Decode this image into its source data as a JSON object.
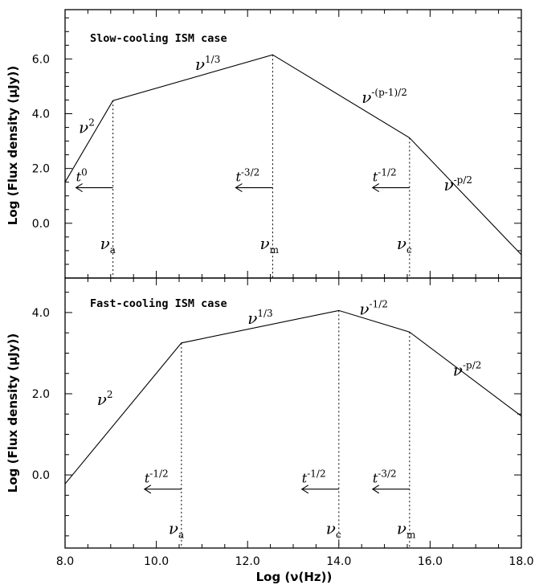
{
  "chart_data": [
    {
      "type": "line",
      "title": "Slow-cooling ISM case",
      "xlabel": "Log (ν(Hz))",
      "ylabel": "Log (Flux density (μJy))",
      "xlim": [
        8.0,
        18.0
      ],
      "ylim": [
        -2.0,
        7.8
      ],
      "yticks": [
        "0.0",
        "2.0",
        "4.0",
        "6.0"
      ],
      "series": [
        {
          "name": "spectrum",
          "x": [
            8.0,
            9.05,
            12.55,
            15.55,
            18.0
          ],
          "y": [
            1.5,
            4.48,
            6.15,
            3.12,
            -1.15
          ]
        }
      ],
      "breaks": [
        {
          "label": "a",
          "x": 9.05,
          "y": 4.48,
          "scaling": {
            "base": "t",
            "exp": "0"
          }
        },
        {
          "label": "m",
          "x": 12.55,
          "y": 6.15,
          "scaling": {
            "base": "t",
            "exp": "-3/2"
          }
        },
        {
          "label": "c",
          "x": 15.55,
          "y": 3.12,
          "scaling": {
            "base": "t",
            "exp": "-1/2"
          }
        }
      ],
      "segment_labels": [
        {
          "base": "ν",
          "exp": "2",
          "x": 8.3,
          "y": 3.3
        },
        {
          "base": "ν",
          "exp": "1/3",
          "x": 10.85,
          "y": 5.6
        },
        {
          "base": "ν",
          "exp": "-(p-1)/2",
          "x": 14.5,
          "y": 4.4
        },
        {
          "base": "ν",
          "exp": "-p/2",
          "x": 16.3,
          "y": 1.2
        }
      ],
      "break_symbol": "ν"
    },
    {
      "type": "line",
      "title": "Fast-cooling ISM case",
      "xlabel": "Log (ν(Hz))",
      "ylabel": "Log (Flux density (μJy))",
      "xlim": [
        8.0,
        18.0
      ],
      "ylim": [
        -1.8,
        4.85
      ],
      "yticks": [
        "0.0",
        "2.0",
        "4.0"
      ],
      "xticks": [
        "8.0",
        "10.0",
        "12.0",
        "14.0",
        "16.0",
        "18.0"
      ],
      "series": [
        {
          "name": "spectrum",
          "x": [
            8.0,
            10.55,
            14.0,
            15.55,
            18.0
          ],
          "y": [
            -0.22,
            3.25,
            4.05,
            3.52,
            1.45
          ]
        }
      ],
      "breaks": [
        {
          "label": "a",
          "x": 10.55,
          "y": 3.25,
          "scaling": {
            "base": "t",
            "exp": "-1/2"
          }
        },
        {
          "label": "c",
          "x": 14.0,
          "y": 4.05,
          "scaling": {
            "base": "t",
            "exp": "-1/2"
          }
        },
        {
          "label": "m",
          "x": 15.55,
          "y": 3.52,
          "scaling": {
            "base": "t",
            "exp": "-3/2"
          }
        }
      ],
      "segment_labels": [
        {
          "base": "ν",
          "exp": "2",
          "x": 8.7,
          "y": 1.72
        },
        {
          "base": "ν",
          "exp": "1/3",
          "x": 12.0,
          "y": 3.72
        },
        {
          "base": "ν",
          "exp": "-1/2",
          "x": 14.45,
          "y": 3.95
        },
        {
          "base": "ν",
          "exp": "-p/2",
          "x": 16.5,
          "y": 2.45
        }
      ],
      "break_symbol": "ν"
    }
  ]
}
